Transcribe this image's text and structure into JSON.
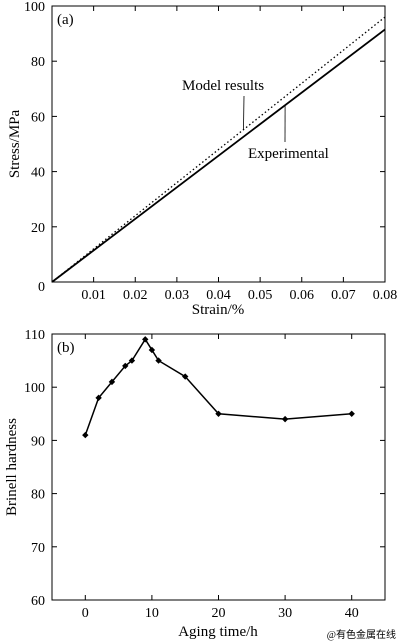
{
  "watermark": "@有色金属在线",
  "chart_data": [
    {
      "type": "line",
      "panel_label": "(a)",
      "xlabel": "Strain/%",
      "ylabel": "Stress/MPa",
      "xlim": [
        0,
        0.08
      ],
      "ylim": [
        0,
        100
      ],
      "xticks": [
        0.01,
        0.02,
        0.03,
        0.04,
        0.05,
        0.06,
        0.07,
        0.08
      ],
      "xtick_labels": [
        "0.01",
        "0.02",
        "0.03",
        "0.04",
        "0.05",
        "0.06",
        "0.07",
        "0.08"
      ],
      "yticks": [
        0,
        20,
        40,
        60,
        80,
        100
      ],
      "ytick_labels": [
        "0",
        "20",
        "40",
        "60",
        "80",
        "100"
      ],
      "origin_label": "0",
      "grid": false,
      "series": [
        {
          "name": "Model results",
          "style": "dotted",
          "x": [
            0,
            0.08
          ],
          "y": [
            0,
            96
          ]
        },
        {
          "name": "Experimental",
          "style": "solid",
          "x": [
            0,
            0.08
          ],
          "y": [
            0,
            91.5
          ]
        }
      ],
      "annotations": [
        {
          "text": "Model results",
          "series": 0,
          "x": 0.046
        },
        {
          "text": "Experimental",
          "series": 1,
          "x": 0.056
        }
      ]
    },
    {
      "type": "line",
      "panel_label": "(b)",
      "xlabel": "Aging time/h",
      "ylabel": "Brinell hardness",
      "xlim": [
        -5,
        45
      ],
      "ylim": [
        60,
        110
      ],
      "xticks": [
        0,
        10,
        20,
        30,
        40
      ],
      "xtick_labels": [
        "0",
        "10",
        "20",
        "30",
        "40"
      ],
      "yticks": [
        60,
        70,
        80,
        90,
        100,
        110
      ],
      "ytick_labels": [
        "60",
        "70",
        "80",
        "90",
        "100",
        "110"
      ],
      "grid": false,
      "marker": "diamond",
      "series": [
        {
          "x": [
            0,
            2,
            4,
            6,
            7,
            9,
            10,
            11,
            15,
            20,
            30,
            40
          ],
          "y": [
            91,
            98,
            101,
            104,
            105,
            109,
            107,
            105,
            102,
            95,
            94,
            95
          ]
        }
      ]
    }
  ]
}
